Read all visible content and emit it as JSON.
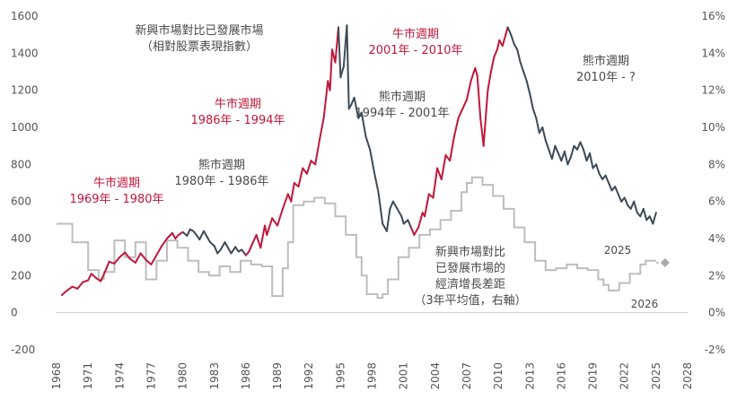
{
  "chart_data": {
    "type": "line",
    "x_axis": {
      "range": [
        1968,
        2028
      ],
      "ticks": [
        "1968",
        "1971",
        "1974",
        "1977",
        "1980",
        "1983",
        "1986",
        "1989",
        "1992",
        "1995",
        "1998",
        "2001",
        "2004",
        "2007",
        "2010",
        "2013",
        "2016",
        "2019",
        "2022",
        "2025",
        "2028"
      ]
    },
    "y_left": {
      "range": [
        -200,
        1600
      ],
      "ticks": [
        "-200",
        "0",
        "200",
        "400",
        "600",
        "800",
        "1000",
        "1200",
        "1400",
        "1600"
      ]
    },
    "y_right": {
      "range": [
        -2,
        16
      ],
      "ticks": [
        "-2%",
        "0%",
        "2%",
        "4%",
        "6%",
        "8%",
        "10%",
        "12%",
        "14%",
        "16%"
      ]
    },
    "colors": {
      "bull": "#c0173a",
      "bear": "#3d4a57",
      "diff": "#bdbdbd",
      "diamond": "#a9a9a9"
    },
    "series": [
      {
        "axis": "left",
        "points": [
          [
            1968.5,
            95
          ],
          [
            1969.0,
            120
          ],
          [
            1969.5,
            140
          ],
          [
            1970.0,
            130
          ],
          [
            1970.5,
            165
          ],
          [
            1971.0,
            175
          ],
          [
            1971.3,
            210
          ],
          [
            1971.8,
            185
          ],
          [
            1972.2,
            170
          ],
          [
            1972.6,
            220
          ],
          [
            1973.0,
            275
          ],
          [
            1973.5,
            265
          ],
          [
            1974.0,
            300
          ],
          [
            1974.5,
            325
          ],
          [
            1975.0,
            290
          ],
          [
            1975.5,
            270
          ],
          [
            1976.0,
            320
          ],
          [
            1976.5,
            285
          ],
          [
            1977.0,
            260
          ],
          [
            1977.5,
            310
          ],
          [
            1978.0,
            360
          ],
          [
            1978.5,
            400
          ],
          [
            1979.0,
            430
          ],
          [
            1979.3,
            400
          ],
          [
            1979.6,
            420
          ],
          [
            1980.0,
            435
          ],
          [
            1980.4,
            415
          ],
          [
            1980.7,
            450
          ],
          [
            1981.0,
            440
          ],
          [
            1981.3,
            420
          ],
          [
            1981.6,
            395
          ],
          [
            1982.0,
            440
          ],
          [
            1982.3,
            410
          ],
          [
            1982.6,
            380
          ],
          [
            1983.0,
            360
          ],
          [
            1983.3,
            320
          ],
          [
            1983.6,
            340
          ],
          [
            1984.0,
            380
          ],
          [
            1984.3,
            350
          ],
          [
            1984.6,
            320
          ],
          [
            1985.0,
            355
          ],
          [
            1985.3,
            330
          ],
          [
            1985.6,
            340
          ],
          [
            1986.0,
            310
          ],
          [
            1986.3,
            330
          ],
          [
            1986.6,
            370
          ],
          [
            1987.0,
            420
          ],
          [
            1987.4,
            350
          ],
          [
            1987.8,
            470
          ],
          [
            1988.0,
            420
          ],
          [
            1988.5,
            510
          ],
          [
            1989.0,
            470
          ],
          [
            1989.5,
            560
          ],
          [
            1990.0,
            640
          ],
          [
            1990.3,
            600
          ],
          [
            1990.6,
            700
          ],
          [
            1991.0,
            680
          ],
          [
            1991.4,
            780
          ],
          [
            1991.8,
            750
          ],
          [
            1992.2,
            820
          ],
          [
            1992.6,
            800
          ],
          [
            1993.0,
            930
          ],
          [
            1993.4,
            1050
          ],
          [
            1993.8,
            1250
          ],
          [
            1994.0,
            1200
          ],
          [
            1994.2,
            1420
          ],
          [
            1994.5,
            1350
          ],
          [
            1994.8,
            1540
          ],
          [
            1995.0,
            1270
          ],
          [
            1995.3,
            1330
          ],
          [
            1995.6,
            1550
          ],
          [
            1995.8,
            1100
          ],
          [
            1996.0,
            1120
          ],
          [
            1996.3,
            1160
          ],
          [
            1996.7,
            1050
          ],
          [
            1997.0,
            1080
          ],
          [
            1997.4,
            950
          ],
          [
            1997.8,
            880
          ],
          [
            1998.2,
            760
          ],
          [
            1998.6,
            650
          ],
          [
            1999.0,
            480
          ],
          [
            1999.4,
            440
          ],
          [
            1999.7,
            560
          ],
          [
            2000.0,
            600
          ],
          [
            2000.4,
            560
          ],
          [
            2000.8,
            520
          ],
          [
            2001.0,
            480
          ],
          [
            2001.4,
            500
          ],
          [
            2001.7,
            460
          ],
          [
            2002.0,
            420
          ],
          [
            2002.4,
            460
          ],
          [
            2002.8,
            540
          ],
          [
            2003.0,
            520
          ],
          [
            2003.4,
            640
          ],
          [
            2003.8,
            620
          ],
          [
            2004.2,
            780
          ],
          [
            2004.6,
            720
          ],
          [
            2005.0,
            850
          ],
          [
            2005.4,
            820
          ],
          [
            2005.8,
            950
          ],
          [
            2006.2,
            1050
          ],
          [
            2006.6,
            1100
          ],
          [
            2007.0,
            1150
          ],
          [
            2007.4,
            1250
          ],
          [
            2007.8,
            1320
          ],
          [
            2008.0,
            1280
          ],
          [
            2008.3,
            1050
          ],
          [
            2008.6,
            900
          ],
          [
            2008.8,
            1050
          ],
          [
            2009.0,
            1200
          ],
          [
            2009.3,
            1300
          ],
          [
            2009.6,
            1380
          ],
          [
            2009.9,
            1420
          ],
          [
            2010.1,
            1470
          ],
          [
            2010.4,
            1440
          ],
          [
            2010.7,
            1500
          ],
          [
            2010.9,
            1540
          ],
          [
            2011.2,
            1500
          ],
          [
            2011.5,
            1450
          ],
          [
            2011.8,
            1420
          ],
          [
            2012.1,
            1350
          ],
          [
            2012.4,
            1300
          ],
          [
            2012.7,
            1250
          ],
          [
            2013.0,
            1180
          ],
          [
            2013.3,
            1100
          ],
          [
            2013.6,
            1050
          ],
          [
            2013.9,
            970
          ],
          [
            2014.2,
            1000
          ],
          [
            2014.5,
            930
          ],
          [
            2014.8,
            880
          ],
          [
            2015.1,
            830
          ],
          [
            2015.4,
            900
          ],
          [
            2015.7,
            860
          ],
          [
            2016.0,
            820
          ],
          [
            2016.3,
            870
          ],
          [
            2016.6,
            800
          ],
          [
            2016.9,
            840
          ],
          [
            2017.2,
            900
          ],
          [
            2017.5,
            880
          ],
          [
            2017.8,
            920
          ],
          [
            2018.1,
            880
          ],
          [
            2018.4,
            820
          ],
          [
            2018.7,
            860
          ],
          [
            2019.0,
            780
          ],
          [
            2019.3,
            800
          ],
          [
            2019.6,
            750
          ],
          [
            2019.9,
            720
          ],
          [
            2020.2,
            740
          ],
          [
            2020.5,
            700
          ],
          [
            2020.8,
            660
          ],
          [
            2021.1,
            680
          ],
          [
            2021.4,
            640
          ],
          [
            2021.7,
            600
          ],
          [
            2022.0,
            620
          ],
          [
            2022.3,
            580
          ],
          [
            2022.6,
            560
          ],
          [
            2022.9,
            600
          ],
          [
            2023.2,
            540
          ],
          [
            2023.5,
            520
          ],
          [
            2023.8,
            560
          ],
          [
            2024.1,
            500
          ],
          [
            2024.4,
            520
          ],
          [
            2024.7,
            480
          ],
          [
            2025.0,
            540
          ]
        ]
      },
      {
        "axis": "right",
        "step": true,
        "points": [
          [
            1968.0,
            4.8
          ],
          [
            1969.5,
            3.8
          ],
          [
            1971.0,
            2.3
          ],
          [
            1972.0,
            1.8
          ],
          [
            1972.5,
            2.2
          ],
          [
            1973.5,
            3.9
          ],
          [
            1974.5,
            3.0
          ],
          [
            1975.5,
            3.8
          ],
          [
            1976.5,
            1.8
          ],
          [
            1977.5,
            2.8
          ],
          [
            1978.5,
            3.9
          ],
          [
            1979.5,
            3.5
          ],
          [
            1980.5,
            2.8
          ],
          [
            1981.5,
            2.2
          ],
          [
            1982.5,
            2.0
          ],
          [
            1983.5,
            2.5
          ],
          [
            1984.5,
            2.2
          ],
          [
            1985.5,
            2.8
          ],
          [
            1986.5,
            2.6
          ],
          [
            1987.5,
            2.5
          ],
          [
            1988.5,
            0.9
          ],
          [
            1989.5,
            2.4
          ],
          [
            1990.0,
            3.8
          ],
          [
            1990.5,
            5.8
          ],
          [
            1991.5,
            6.0
          ],
          [
            1992.5,
            6.2
          ],
          [
            1993.5,
            5.9
          ],
          [
            1994.5,
            5.2
          ],
          [
            1995.5,
            4.2
          ],
          [
            1996.5,
            3.0
          ],
          [
            1997.0,
            2.0
          ],
          [
            1997.5,
            1.0
          ],
          [
            1998.5,
            0.8
          ],
          [
            1999.0,
            1.0
          ],
          [
            1999.5,
            1.8
          ],
          [
            2000.5,
            3.0
          ],
          [
            2001.5,
            3.5
          ],
          [
            2002.5,
            4.2
          ],
          [
            2003.5,
            4.5
          ],
          [
            2004.5,
            5.0
          ],
          [
            2005.5,
            5.5
          ],
          [
            2006.5,
            6.5
          ],
          [
            2007.0,
            7.0
          ],
          [
            2007.5,
            7.3
          ],
          [
            2008.5,
            6.9
          ],
          [
            2009.5,
            6.3
          ],
          [
            2010.5,
            5.6
          ],
          [
            2011.5,
            4.6
          ],
          [
            2012.5,
            3.8
          ],
          [
            2013.5,
            2.8
          ],
          [
            2014.5,
            2.3
          ],
          [
            2015.5,
            2.4
          ],
          [
            2016.5,
            2.6
          ],
          [
            2017.5,
            2.4
          ],
          [
            2018.5,
            2.3
          ],
          [
            2019.5,
            1.8
          ],
          [
            2020.0,
            1.5
          ],
          [
            2020.5,
            1.2
          ],
          [
            2021.5,
            1.6
          ],
          [
            2022.5,
            2.1
          ],
          [
            2023.5,
            2.6
          ],
          [
            2024.0,
            2.8
          ],
          [
            2025.0,
            2.8
          ]
        ]
      }
    ],
    "projection_marker": {
      "x": 2025.0,
      "y_right": 2.7
    },
    "bull_periods": [
      [
        1968.5,
        1980.0
      ],
      [
        1986.0,
        1994.8
      ],
      [
        2001.7,
        2010.9
      ]
    ],
    "annotations": {
      "diff_title": [
        "新興市場對比已發展市場",
        "（相對股票表現指數）"
      ],
      "bull_1": [
        "牛市週期",
        "1969年 - 1980年"
      ],
      "bear_1": [
        "熊市週期",
        "1980年 - 1986年"
      ],
      "bull_2": [
        "牛市週期",
        "1986年 - 1994年"
      ],
      "bear_2": [
        "熊市週期",
        "1994年 - 2001年"
      ],
      "bull_3": [
        "牛市週期",
        "2001年 - 2010年"
      ],
      "bear_3": [
        "熊市週期",
        "2010年 - ?"
      ],
      "diff_label": [
        "新興市場對比",
        "已發展市場的",
        "經濟增長差距",
        "（3年平均值，右軸）"
      ],
      "year_2025": "2025",
      "year_2026": "2026"
    }
  }
}
